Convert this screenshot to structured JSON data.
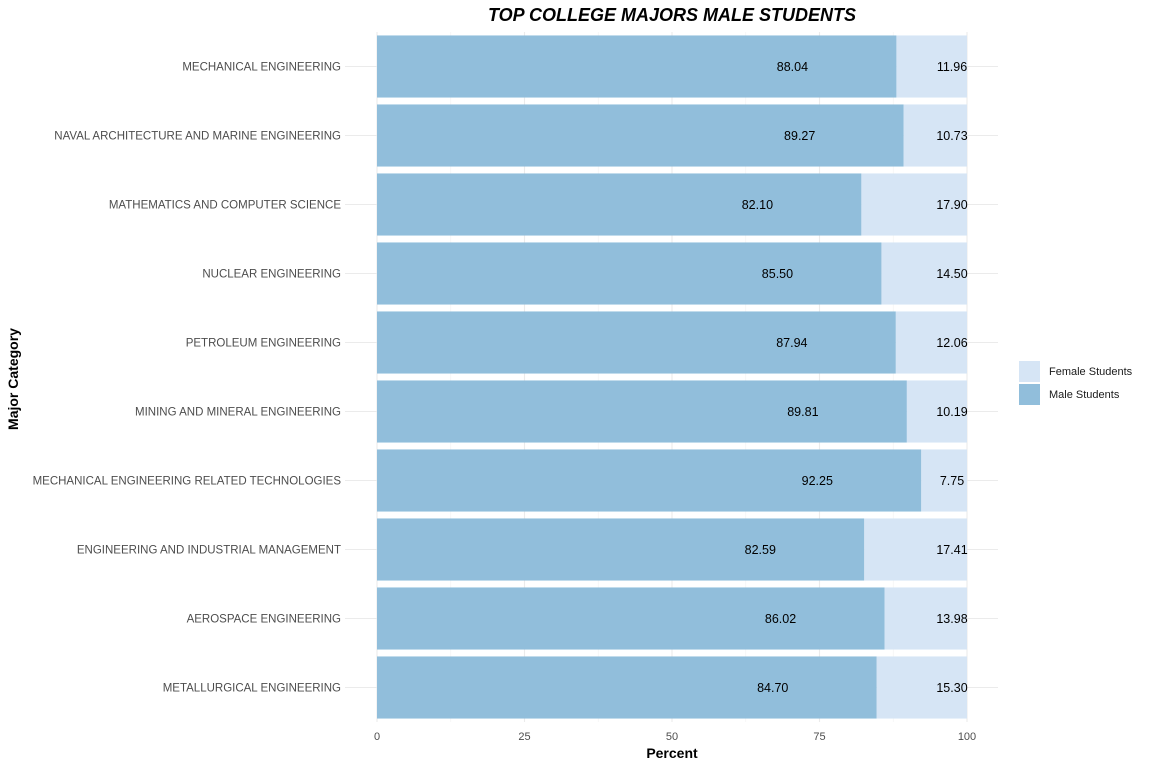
{
  "chart_data": {
    "type": "bar",
    "orientation": "horizontal",
    "stacked": true,
    "title": "TOP COLLEGE MAJORS MALE STUDENTS",
    "xlabel": "Percent",
    "ylabel": "Major Category",
    "xlim": [
      0,
      100
    ],
    "x_ticks": [
      "0",
      "25",
      "50",
      "75",
      "100"
    ],
    "grid": true,
    "legend_position": "right",
    "categories": [
      "MECHANICAL ENGINEERING",
      "NAVAL ARCHITECTURE AND MARINE ENGINEERING",
      "MATHEMATICS AND COMPUTER SCIENCE",
      "NUCLEAR ENGINEERING",
      "PETROLEUM ENGINEERING",
      "MINING AND MINERAL ENGINEERING",
      "MECHANICAL ENGINEERING RELATED TECHNOLOGIES",
      "ENGINEERING AND INDUSTRIAL MANAGEMENT",
      "AEROSPACE ENGINEERING",
      "METALLURGICAL ENGINEERING"
    ],
    "series": [
      {
        "name": "Male Students",
        "color": "#91bedb",
        "values": [
          88.04,
          89.27,
          82.1,
          85.5,
          87.94,
          89.81,
          92.25,
          82.59,
          86.02,
          84.7
        ],
        "labels": [
          "88.04",
          "89.27",
          "82.10",
          "85.50",
          "87.94",
          "89.81",
          "92.25",
          "82.59",
          "86.02",
          "84.70"
        ]
      },
      {
        "name": "Female Students",
        "color": "#d6e5f5",
        "values": [
          11.96,
          10.73,
          17.9,
          14.5,
          12.06,
          10.19,
          7.75,
          17.41,
          13.98,
          15.3
        ],
        "labels": [
          "11.96",
          "10.73",
          "17.90",
          "14.50",
          "12.06",
          "10.19",
          "7.75",
          "17.41",
          "13.98",
          "15.30"
        ]
      }
    ],
    "legend": [
      "Female Students",
      "Male Students"
    ]
  }
}
